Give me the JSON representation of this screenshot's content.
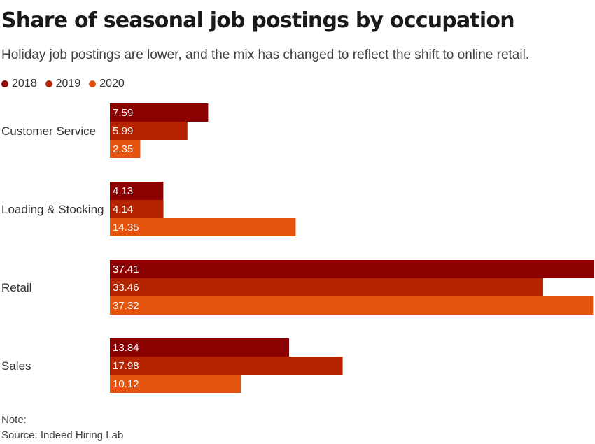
{
  "chart_data": {
    "type": "bar",
    "orientation": "horizontal",
    "title": "Share of seasonal job postings by occupation",
    "subtitle": "Holiday job postings are lower, and the mix has changed to reflect the shift to online retail.",
    "categories": [
      "Customer Service",
      "Loading & Stocking",
      "Retail",
      "Sales"
    ],
    "series": [
      {
        "name": "2018",
        "color": "#8b0000",
        "values": [
          7.59,
          4.13,
          37.41,
          13.84
        ]
      },
      {
        "name": "2019",
        "color": "#b42400",
        "values": [
          5.99,
          4.14,
          33.46,
          17.98
        ]
      },
      {
        "name": "2020",
        "color": "#e5540e",
        "values": [
          2.35,
          14.35,
          37.32,
          10.12
        ]
      }
    ],
    "xlim": [
      0,
      37.41
    ],
    "legend_position": "top-left",
    "grid": false,
    "note": "Note:",
    "source": "Source: Indeed Hiring Lab"
  }
}
